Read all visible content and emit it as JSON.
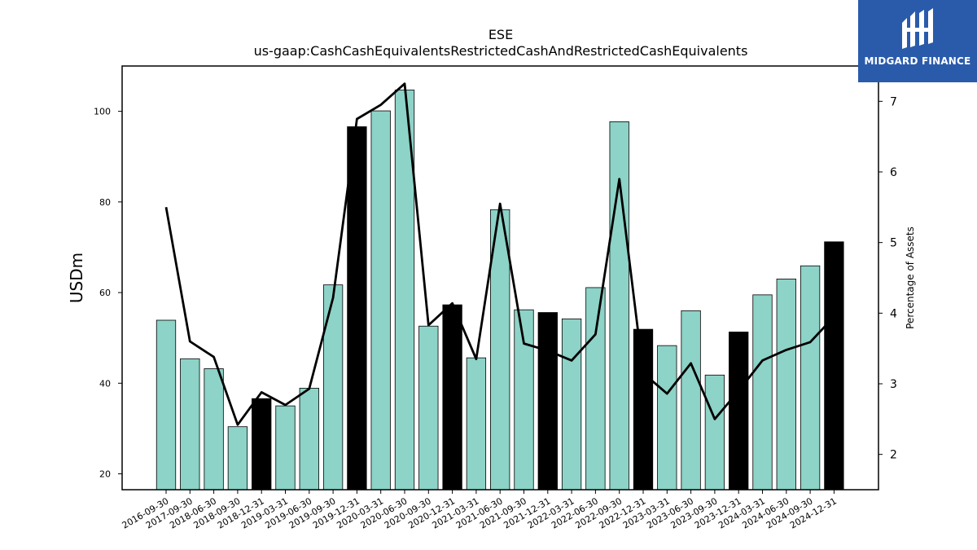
{
  "logo": {
    "name": "MIDGARD FINANCE",
    "color": "#2a5bab"
  },
  "chart_data": {
    "type": "bar",
    "title": "ESE",
    "subtitle": "us-gaap:CashCashEquivalentsRestrictedCashAndRestrictedCashEquivalents",
    "ylabel": "USDm",
    "y2label": "Percentage of Assets",
    "ylim": [
      16.5,
      110
    ],
    "y2lim": [
      1.5,
      7.5
    ],
    "yticks": [
      20,
      40,
      60,
      80,
      100
    ],
    "y2ticks": [
      2,
      3,
      4,
      5,
      6,
      7
    ],
    "categories": [
      "2016-09-30",
      "2017-09-30",
      "2018-06-30",
      "2018-09-30",
      "2018-12-31",
      "2019-03-31",
      "2019-06-30",
      "2019-09-30",
      "2019-12-31",
      "2020-03-31",
      "2020-06-30",
      "2020-09-30",
      "2020-12-31",
      "2021-03-31",
      "2021-06-30",
      "2021-09-30",
      "2021-12-31",
      "2022-03-31",
      "2022-06-30",
      "2022-09-30",
      "2022-12-31",
      "2023-03-31",
      "2023-06-30",
      "2023-09-30",
      "2023-12-31",
      "2024-03-31",
      "2024-06-30",
      "2024-09-30",
      "2024-12-31"
    ],
    "series": [
      {
        "type": "bar",
        "values": [
          53.9,
          45.4,
          43.2,
          30.4,
          36.6,
          35.0,
          38.9,
          61.7,
          96.6,
          100.1,
          104.7,
          52.6,
          57.3,
          45.6,
          78.3,
          56.2,
          55.6,
          54.2,
          61.1,
          97.7,
          51.9,
          48.3,
          56.0,
          41.8,
          51.3,
          59.5,
          63.0,
          65.9,
          71.2
        ],
        "highlight": [
          false,
          false,
          false,
          false,
          true,
          false,
          false,
          false,
          true,
          false,
          false,
          false,
          true,
          false,
          false,
          false,
          true,
          false,
          false,
          false,
          true,
          false,
          false,
          false,
          true,
          false,
          false,
          false,
          true
        ],
        "color": "#8dd3c7",
        "highlight_color": "#000000"
      },
      {
        "type": "line",
        "axis": "right",
        "values": [
          5.5,
          3.6,
          3.38,
          2.42,
          2.88,
          2.7,
          2.93,
          4.22,
          6.75,
          6.95,
          7.25,
          3.83,
          4.14,
          3.35,
          5.55,
          3.57,
          3.47,
          3.33,
          3.7,
          5.9,
          3.15,
          2.86,
          3.29,
          2.5,
          2.9,
          3.33,
          3.48,
          3.59,
          3.95
        ],
        "color": "#000000"
      }
    ],
    "grid": false,
    "legend": "none"
  }
}
